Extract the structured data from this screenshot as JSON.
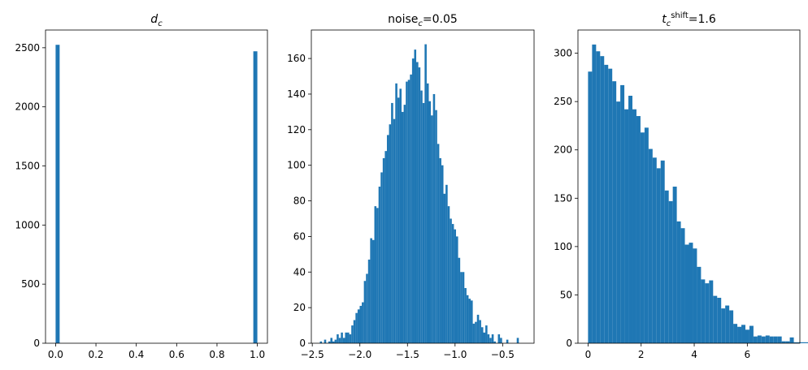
{
  "chart_data": [
    {
      "type": "bar",
      "title_parts": [
        {
          "t": "d",
          "style": "italic"
        },
        {
          "t": "c",
          "style": "italic-sub"
        }
      ],
      "title": "d_c",
      "xlim": [
        -0.05,
        1.05
      ],
      "ylim": [
        0,
        2650
      ],
      "xticks": [
        0.0,
        0.2,
        0.4,
        0.6,
        0.8,
        1.0
      ],
      "xtick_labels": [
        "0.0",
        "0.2",
        "0.4",
        "0.6",
        "0.8",
        "1.0"
      ],
      "yticks": [
        0,
        500,
        1000,
        1500,
        2000,
        2500
      ],
      "ytick_labels": [
        "0",
        "500",
        "1000",
        "1500",
        "2000",
        "2500"
      ],
      "bar_color": "#1f77b4",
      "bins": [
        {
          "x0": 0.0,
          "x1": 0.02,
          "count": 2525
        },
        {
          "x0": 0.98,
          "x1": 1.0,
          "count": 2470
        }
      ]
    },
    {
      "type": "bar",
      "title_parts": [
        {
          "t": "noise",
          "style": "normal"
        },
        {
          "t": "c",
          "style": "italic-sub"
        },
        {
          "t": "=0.05",
          "style": "normal"
        }
      ],
      "title": "noise_c=0.05",
      "xlim": [
        -2.51,
        -0.17
      ],
      "ylim": [
        0,
        176
      ],
      "xticks": [
        -2.5,
        -2.0,
        -1.5,
        -1.0,
        -0.5
      ],
      "xtick_labels": [
        "−2.5",
        "−2.0",
        "−1.5",
        "−1.0",
        "−0.5"
      ],
      "yticks": [
        0,
        20,
        40,
        60,
        80,
        100,
        120,
        140,
        160
      ],
      "ytick_labels": [
        "0",
        "20",
        "40",
        "60",
        "80",
        "100",
        "120",
        "140",
        "160"
      ],
      "bar_color": "#1f77b4",
      "bin_start": -2.42,
      "bin_width": 0.022,
      "counts": [
        1,
        0,
        2,
        0,
        1,
        3,
        1,
        2,
        5,
        3,
        6,
        3,
        6,
        6,
        5,
        10,
        13,
        17,
        19,
        21,
        23,
        35,
        39,
        47,
        59,
        58,
        77,
        76,
        88,
        96,
        104,
        108,
        117,
        123,
        135,
        126,
        146,
        138,
        143,
        130,
        134,
        147,
        148,
        151,
        160,
        165,
        158,
        155,
        142,
        135,
        168,
        146,
        136,
        128,
        140,
        131,
        112,
        104,
        100,
        84,
        89,
        77,
        70,
        67,
        64,
        60,
        48,
        40,
        40,
        31,
        27,
        25,
        24,
        11,
        12,
        16,
        13,
        9,
        6,
        10,
        5,
        3,
        5,
        1,
        0,
        5,
        3,
        0,
        0,
        2,
        0,
        0,
        0,
        0,
        3
      ]
    },
    {
      "type": "bar",
      "title_parts": [
        {
          "t": "t",
          "style": "italic"
        },
        {
          "t": "c",
          "style": "italic-sub"
        },
        {
          "t": "shift",
          "style": "sup"
        },
        {
          "t": "=1.6",
          "style": "normal"
        }
      ],
      "title": "t_c^shift=1.6",
      "xlim": [
        -0.38,
        7.98
      ],
      "ylim": [
        0,
        324
      ],
      "xticks": [
        0,
        2,
        4,
        6
      ],
      "xtick_labels": [
        "0",
        "2",
        "4",
        "6"
      ],
      "yticks": [
        0,
        50,
        100,
        150,
        200,
        250,
        300
      ],
      "ytick_labels": [
        "0",
        "50",
        "100",
        "150",
        "200",
        "250",
        "300"
      ],
      "bar_color": "#1f77b4",
      "bin_start": 0.0,
      "bin_width": 0.152,
      "counts": [
        281,
        309,
        302,
        297,
        288,
        284,
        271,
        250,
        267,
        242,
        256,
        242,
        235,
        218,
        223,
        201,
        192,
        181,
        189,
        158,
        147,
        162,
        126,
        119,
        102,
        104,
        98,
        79,
        66,
        62,
        65,
        49,
        47,
        36,
        39,
        34,
        20,
        17,
        19,
        14,
        18,
        7,
        8,
        7,
        8,
        7,
        7,
        7,
        2,
        2,
        6,
        1,
        1,
        1,
        1,
        1
      ]
    }
  ]
}
